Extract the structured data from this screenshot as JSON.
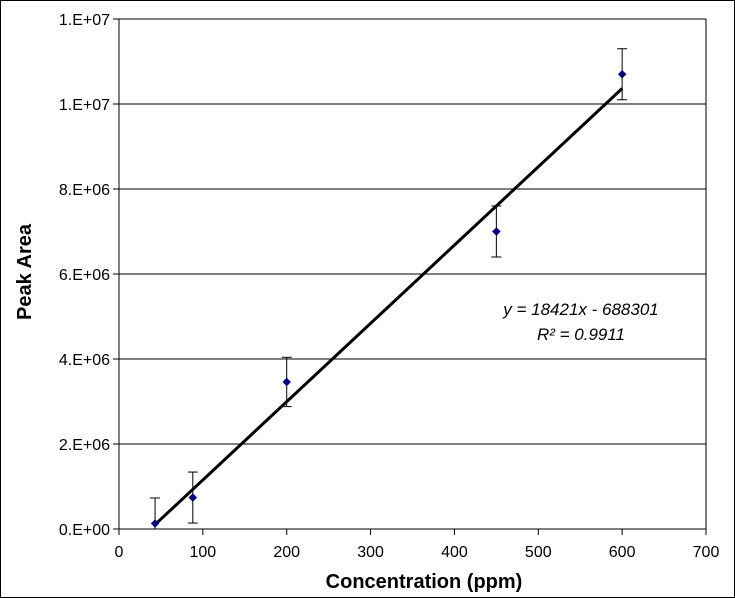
{
  "chart_data": {
    "type": "scatter",
    "xlabel": "Concentration (ppm)",
    "ylabel": "Peak Area",
    "xlim": [
      0,
      700
    ],
    "ylim": [
      0,
      12000000
    ],
    "x_ticks": [
      0,
      100,
      200,
      300,
      400,
      500,
      600,
      700
    ],
    "x_tick_labels": [
      "0",
      "100",
      "200",
      "300",
      "400",
      "500",
      "600",
      "700"
    ],
    "y_ticks": [
      0,
      2000000,
      4000000,
      6000000,
      8000000,
      10000000,
      12000000
    ],
    "y_tick_labels": [
      "0.E+00",
      "2.E+06",
      "4.E+06",
      "6.E+06",
      "8.E+06",
      "1.E+07",
      "1.E+07"
    ],
    "grid": "horizontal",
    "legend": "none",
    "series": [
      {
        "x": [
          43,
          88,
          200,
          450,
          600
        ],
        "y": [
          130000,
          740000,
          3460000,
          7000000,
          10700000
        ],
        "error": [
          600000,
          600000,
          580000,
          600000,
          600000
        ],
        "color": "#000080",
        "marker": "diamond"
      }
    ],
    "trendline": {
      "slope": 18421,
      "intercept": -688301,
      "x_range": [
        43,
        600
      ],
      "color": "#000000"
    },
    "annotations": [
      "y = 18421x - 688301",
      "R² = 0.9911"
    ]
  }
}
